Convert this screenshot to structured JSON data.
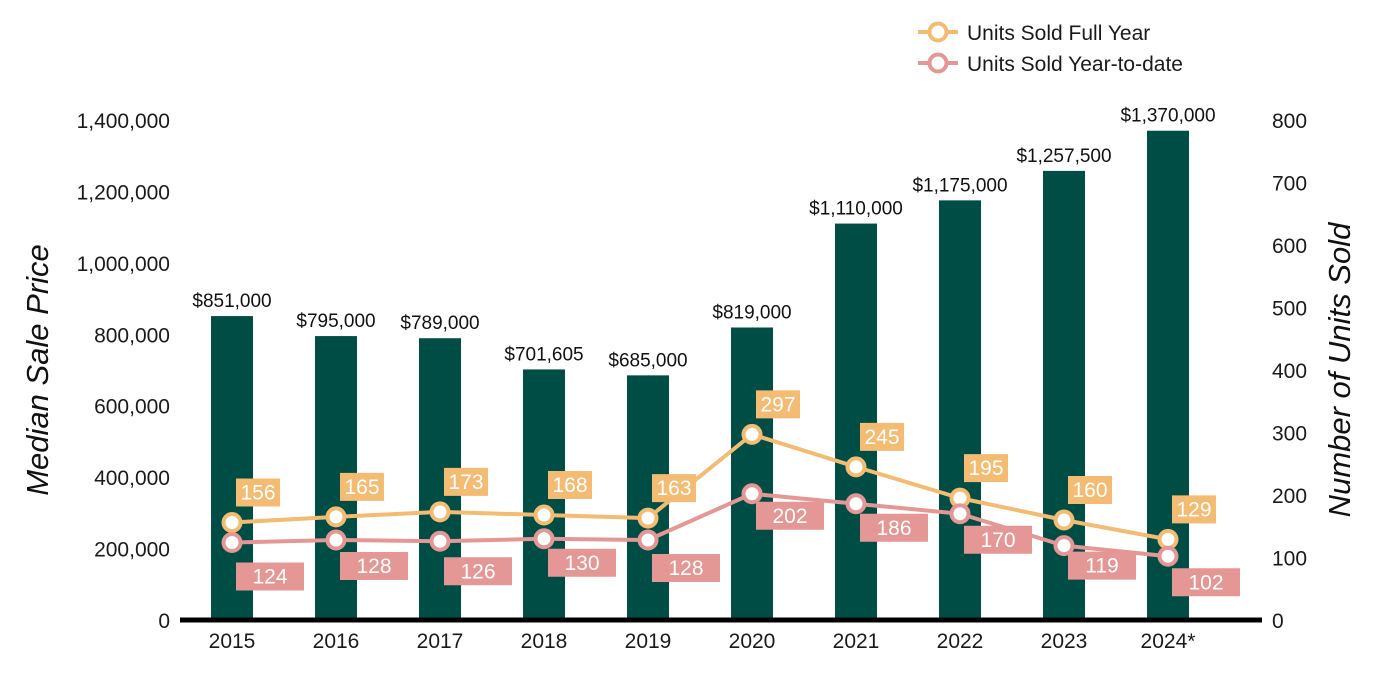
{
  "chart_data": {
    "type": "bar",
    "categories": [
      "2015",
      "2016",
      "2017",
      "2018",
      "2019",
      "2020",
      "2021",
      "2022",
      "2023",
      "2024*"
    ],
    "bar_series": {
      "values": [
        851000,
        795000,
        789000,
        701605,
        685000,
        819000,
        1110000,
        1175000,
        1257500,
        1370000
      ],
      "labels": [
        "$851,000",
        "$795,000",
        "$789,000",
        "$701,605",
        "$685,000",
        "$819,000",
        "$1,110,000",
        "$1,175,000",
        "$1,257,500",
        "$1,370,000"
      ],
      "color": "#004d45"
    },
    "line_series": [
      {
        "name": "Units Sold Full Year",
        "type": "line",
        "values": [
          156,
          165,
          173,
          168,
          163,
          297,
          245,
          195,
          160,
          129
        ],
        "labels": [
          "156",
          "165",
          "173",
          "168",
          "163",
          "297",
          "245",
          "195",
          "160",
          "129"
        ],
        "color": "#f4bb72",
        "axis": "right"
      },
      {
        "name": "Units Sold Year-to-date",
        "type": "line",
        "values": [
          124,
          128,
          126,
          130,
          128,
          202,
          186,
          170,
          119,
          102
        ],
        "labels": [
          "124",
          "128",
          "126",
          "130",
          "128",
          "202",
          "186",
          "170",
          "119",
          "102"
        ],
        "color": "#e49794",
        "axis": "right"
      }
    ],
    "ylabel_left": "Median Sale Price",
    "ylabel_right": "Number of Units Sold",
    "ylim_left": [
      0,
      1400000
    ],
    "ylim_right": [
      0,
      800
    ],
    "yticks_left": [
      "0",
      "200,000",
      "400,000",
      "600,000",
      "800,000",
      "1,000,000",
      "1,200,000",
      "1,400,000"
    ],
    "yticks_right": [
      "0",
      "100",
      "200",
      "300",
      "400",
      "500",
      "600",
      "700",
      "800"
    ],
    "grid": false,
    "legend_position": "top-right"
  }
}
